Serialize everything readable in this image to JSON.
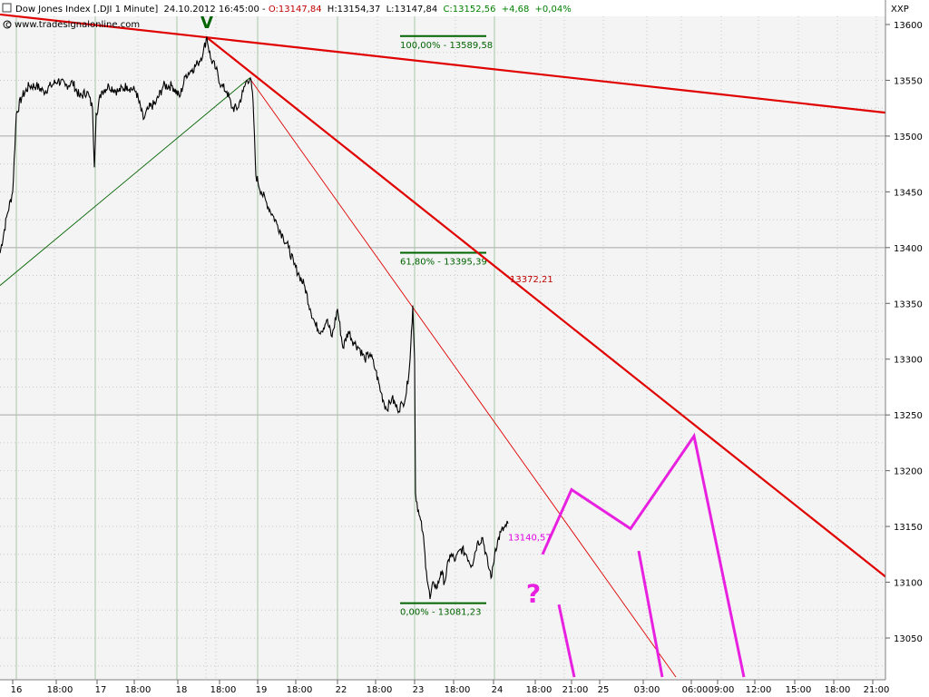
{
  "header": {
    "icon": "window-icon",
    "title": "Dow Jones Index [.DJI  1 Minute]",
    "datetime": "24.10.2012 16:45:00",
    "open": "O:13147,84",
    "high": "H:13154,37",
    "low": "L:13147,84",
    "close": "C:13152,56",
    "change": "+4,68",
    "change_pct": "+0,04%",
    "website": "www.tradesignalonline.com",
    "symbol": "XXP"
  },
  "colors": {
    "background": "#f4f4f4",
    "grid_major": "#a0a0a0",
    "trendline": "#e00000",
    "fib": "#006400",
    "projection": "#e820e0",
    "price": "#000000",
    "open_text": "#c00000",
    "close_text": "#008000"
  },
  "chart_data": {
    "type": "line",
    "title": "",
    "xlabel": "",
    "ylabel": "",
    "ylim": [
      13015,
      13610
    ],
    "y_ticks": [
      13600,
      13550,
      13500,
      13450,
      13400,
      13350,
      13300,
      13250,
      13200,
      13150,
      13100,
      13050
    ],
    "x_ticks": [
      "16",
      "18:00",
      "17",
      "18:00",
      "18",
      "18:00",
      "19",
      "18:00",
      "22",
      "18:00",
      "23",
      "18:00",
      "24",
      "18:00",
      "21:00",
      "25",
      "03:00",
      "06:00",
      "09:00",
      "12:00",
      "15:00",
      "18:00",
      "21:00"
    ],
    "price_series": {
      "name": ".DJI 1 Minute",
      "points": [
        [
          0,
          13395
        ],
        [
          8,
          13430
        ],
        [
          14,
          13450
        ],
        [
          18,
          13520
        ],
        [
          24,
          13535
        ],
        [
          32,
          13545
        ],
        [
          40,
          13545
        ],
        [
          48,
          13540
        ],
        [
          56,
          13545
        ],
        [
          64,
          13550
        ],
        [
          72,
          13545
        ],
        [
          80,
          13548
        ],
        [
          88,
          13535
        ],
        [
          96,
          13540
        ],
        [
          102,
          13525
        ],
        [
          104,
          13472
        ],
        [
          106,
          13520
        ],
        [
          112,
          13540
        ],
        [
          120,
          13545
        ],
        [
          130,
          13540
        ],
        [
          140,
          13545
        ],
        [
          150,
          13540
        ],
        [
          158,
          13515
        ],
        [
          164,
          13525
        ],
        [
          172,
          13530
        ],
        [
          180,
          13545
        ],
        [
          190,
          13545
        ],
        [
          198,
          13535
        ],
        [
          205,
          13555
        ],
        [
          212,
          13560
        ],
        [
          218,
          13565
        ],
        [
          224,
          13575
        ],
        [
          228,
          13589
        ],
        [
          232,
          13570
        ],
        [
          238,
          13560
        ],
        [
          244,
          13545
        ],
        [
          250,
          13540
        ],
        [
          256,
          13525
        ],
        [
          262,
          13525
        ],
        [
          268,
          13540
        ],
        [
          272,
          13550
        ],
        [
          276,
          13552
        ],
        [
          279,
          13530
        ],
        [
          282,
          13465
        ],
        [
          288,
          13450
        ],
        [
          294,
          13440
        ],
        [
          300,
          13430
        ],
        [
          306,
          13420
        ],
        [
          312,
          13410
        ],
        [
          318,
          13400
        ],
        [
          324,
          13385
        ],
        [
          330,
          13375
        ],
        [
          336,
          13365
        ],
        [
          342,
          13345
        ],
        [
          348,
          13330
        ],
        [
          354,
          13325
        ],
        [
          360,
          13335
        ],
        [
          366,
          13320
        ],
        [
          372,
          13345
        ],
        [
          378,
          13310
        ],
        [
          384,
          13325
        ],
        [
          390,
          13315
        ],
        [
          396,
          13310
        ],
        [
          402,
          13300
        ],
        [
          408,
          13305
        ],
        [
          414,
          13290
        ],
        [
          420,
          13270
        ],
        [
          426,
          13255
        ],
        [
          432,
          13265
        ],
        [
          438,
          13255
        ],
        [
          444,
          13260
        ],
        [
          448,
          13270
        ],
        [
          452,
          13300
        ],
        [
          455,
          13348
        ],
        [
          457,
          13300
        ],
        [
          458,
          13180
        ],
        [
          462,
          13160
        ],
        [
          466,
          13145
        ],
        [
          470,
          13110
        ],
        [
          474,
          13085
        ],
        [
          478,
          13100
        ],
        [
          482,
          13095
        ],
        [
          486,
          13110
        ],
        [
          490,
          13100
        ],
        [
          496,
          13125
        ],
        [
          502,
          13120
        ],
        [
          508,
          13130
        ],
        [
          514,
          13125
        ],
        [
          520,
          13115
        ],
        [
          526,
          13135
        ],
        [
          532,
          13140
        ],
        [
          538,
          13115
        ],
        [
          542,
          13105
        ],
        [
          546,
          13130
        ],
        [
          552,
          13145
        ],
        [
          558,
          13150
        ],
        [
          560,
          13152.56
        ]
      ]
    },
    "trendlines": [
      {
        "role": "long-resistance",
        "x1": 0,
        "y1": 13609,
        "x2": 976,
        "y2": 13521,
        "width": 2
      },
      {
        "role": "steep-resistance",
        "x1": 227,
        "y1": 13589,
        "x2": 976,
        "y2": 13105,
        "width": 2
      },
      {
        "role": "thin-resistance",
        "x1": 275,
        "y1": 13552,
        "x2": 745,
        "y2": 13015,
        "width": 1
      },
      {
        "role": "support-fan",
        "x1": 0,
        "y1": 13366,
        "x2": 275,
        "y2": 13552,
        "width": 1,
        "color": "fib"
      }
    ],
    "fibonacci": [
      {
        "level": "100,00% - 13589,58",
        "value": 13589.58
      },
      {
        "level": "61,80% - 13395,39",
        "value": 13395.39
      },
      {
        "level": "0,00% - 13081,23",
        "value": 13081.23
      }
    ],
    "annotations": [
      {
        "text": "13372,21",
        "kind": "red",
        "x": 562,
        "y": 13372.21
      },
      {
        "text": "13140,57",
        "kind": "magenta",
        "x": 560,
        "y": 13140.57
      },
      {
        "text": "?",
        "kind": "magenta-big",
        "x": 588,
        "y": 13082
      },
      {
        "text": "V",
        "kind": "green-marker",
        "x": 228,
        "y": 13600
      }
    ],
    "projection_paths": [
      [
        [
          598,
          13125
        ],
        [
          630,
          13183
        ],
        [
          695,
          13148
        ],
        [
          765,
          13231
        ],
        [
          820,
          13015
        ]
      ],
      [
        [
          704,
          13128
        ],
        [
          730,
          13015
        ]
      ],
      [
        [
          616,
          13080
        ],
        [
          633,
          13015
        ]
      ]
    ]
  }
}
